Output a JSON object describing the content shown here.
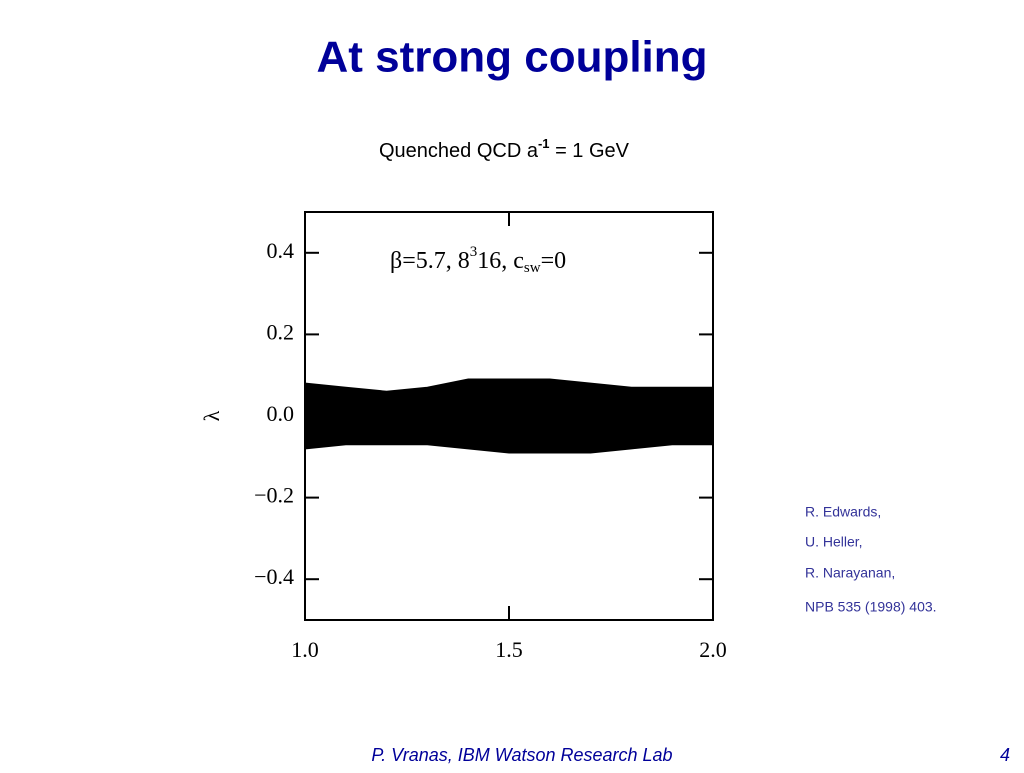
{
  "header": {
    "title": "At strong coupling",
    "subtitle": [
      "Quenched QCD a",
      "-1",
      " = 1 GeV"
    ]
  },
  "chart_data": {
    "type": "band",
    "annotation": [
      "β=5.7,  8",
      "3",
      "16,  c",
      "sw",
      "=0"
    ],
    "ylabel": "λ",
    "x": [
      1.0,
      1.1,
      1.2,
      1.3,
      1.4,
      1.5,
      1.6,
      1.7,
      1.8,
      1.9,
      2.0
    ],
    "series": [
      {
        "color": "#000000",
        "values": [
          0.08,
          0.07,
          0.06,
          0.07,
          0.09,
          0.09,
          0.09,
          0.08,
          0.07,
          0.07,
          0.07
        ]
      },
      {
        "color": "#000000",
        "values": [
          -0.08,
          -0.07,
          -0.07,
          -0.07,
          -0.08,
          -0.09,
          -0.09,
          -0.09,
          -0.08,
          -0.07,
          -0.07
        ]
      }
    ],
    "xlim": [
      1.0,
      2.0
    ],
    "xticks": [
      {
        "value": 1,
        "label": "1.0"
      },
      1.5,
      {
        "value": 2,
        "label": "2.0"
      }
    ],
    "ylim": [
      -0.5,
      0.5
    ],
    "yticks": [
      {
        "value": -0.4,
        "label": "−0.4"
      },
      {
        "value": -0.2,
        "label": "−0.2"
      },
      {
        "value": 0,
        "label": "0.0"
      },
      0.2,
      0.4
    ]
  },
  "citation": [
    "R. Edwards,",
    "U. Heller,",
    "R. Narayanan,",
    "NPB 535 (1998) 403."
  ],
  "footer": {
    "author": "P. Vranas, IBM Watson Research Lab",
    "page": "4"
  }
}
